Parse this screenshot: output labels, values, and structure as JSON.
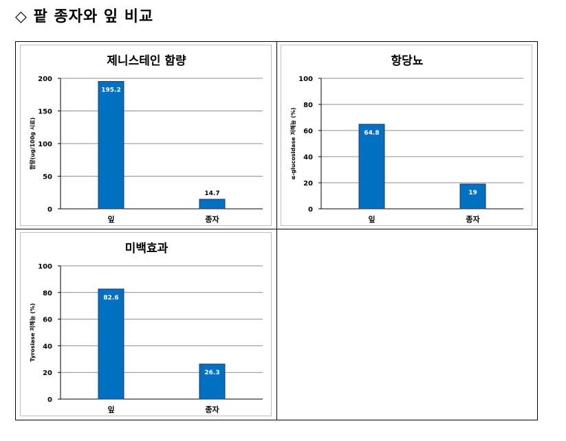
{
  "heading": "◇ 팥 종자와 잎 비교",
  "colors": {
    "bar": "#0070C0",
    "bar_stroke": "#1F3A6E",
    "grid": "#8c8c8c"
  },
  "chart_data": [
    {
      "type": "bar",
      "title": "제니스테인 함량",
      "ylabel": "함량(ug/100g 시료)",
      "xlabel": "",
      "categories": [
        "잎",
        "종자"
      ],
      "values": [
        195.2,
        14.7
      ],
      "value_labels": [
        "195.2",
        "14.7"
      ],
      "ylim": [
        0,
        200
      ],
      "yticks": [
        "0",
        "50",
        "100",
        "150",
        "200"
      ],
      "grid": true
    },
    {
      "type": "bar",
      "title": "항당뇨",
      "ylabel": "α-glucosidase  저해능 (%)",
      "xlabel": "",
      "categories": [
        "잎",
        "종자"
      ],
      "values": [
        64.8,
        19
      ],
      "value_labels": [
        "64.8",
        "19"
      ],
      "ylim": [
        0,
        100
      ],
      "yticks": [
        "0",
        "20",
        "40",
        "60",
        "80",
        "100"
      ],
      "grid": true
    },
    {
      "type": "bar",
      "title": "미백효과",
      "ylabel": "Tyrosiase 저해능 (%)",
      "xlabel": "",
      "categories": [
        "잎",
        "종자"
      ],
      "values": [
        82.6,
        26.3
      ],
      "value_labels": [
        "82.6",
        "26.3"
      ],
      "ylim": [
        0,
        100
      ],
      "yticks": [
        "0",
        "20",
        "40",
        "60",
        "80",
        "100"
      ],
      "grid": true
    }
  ]
}
